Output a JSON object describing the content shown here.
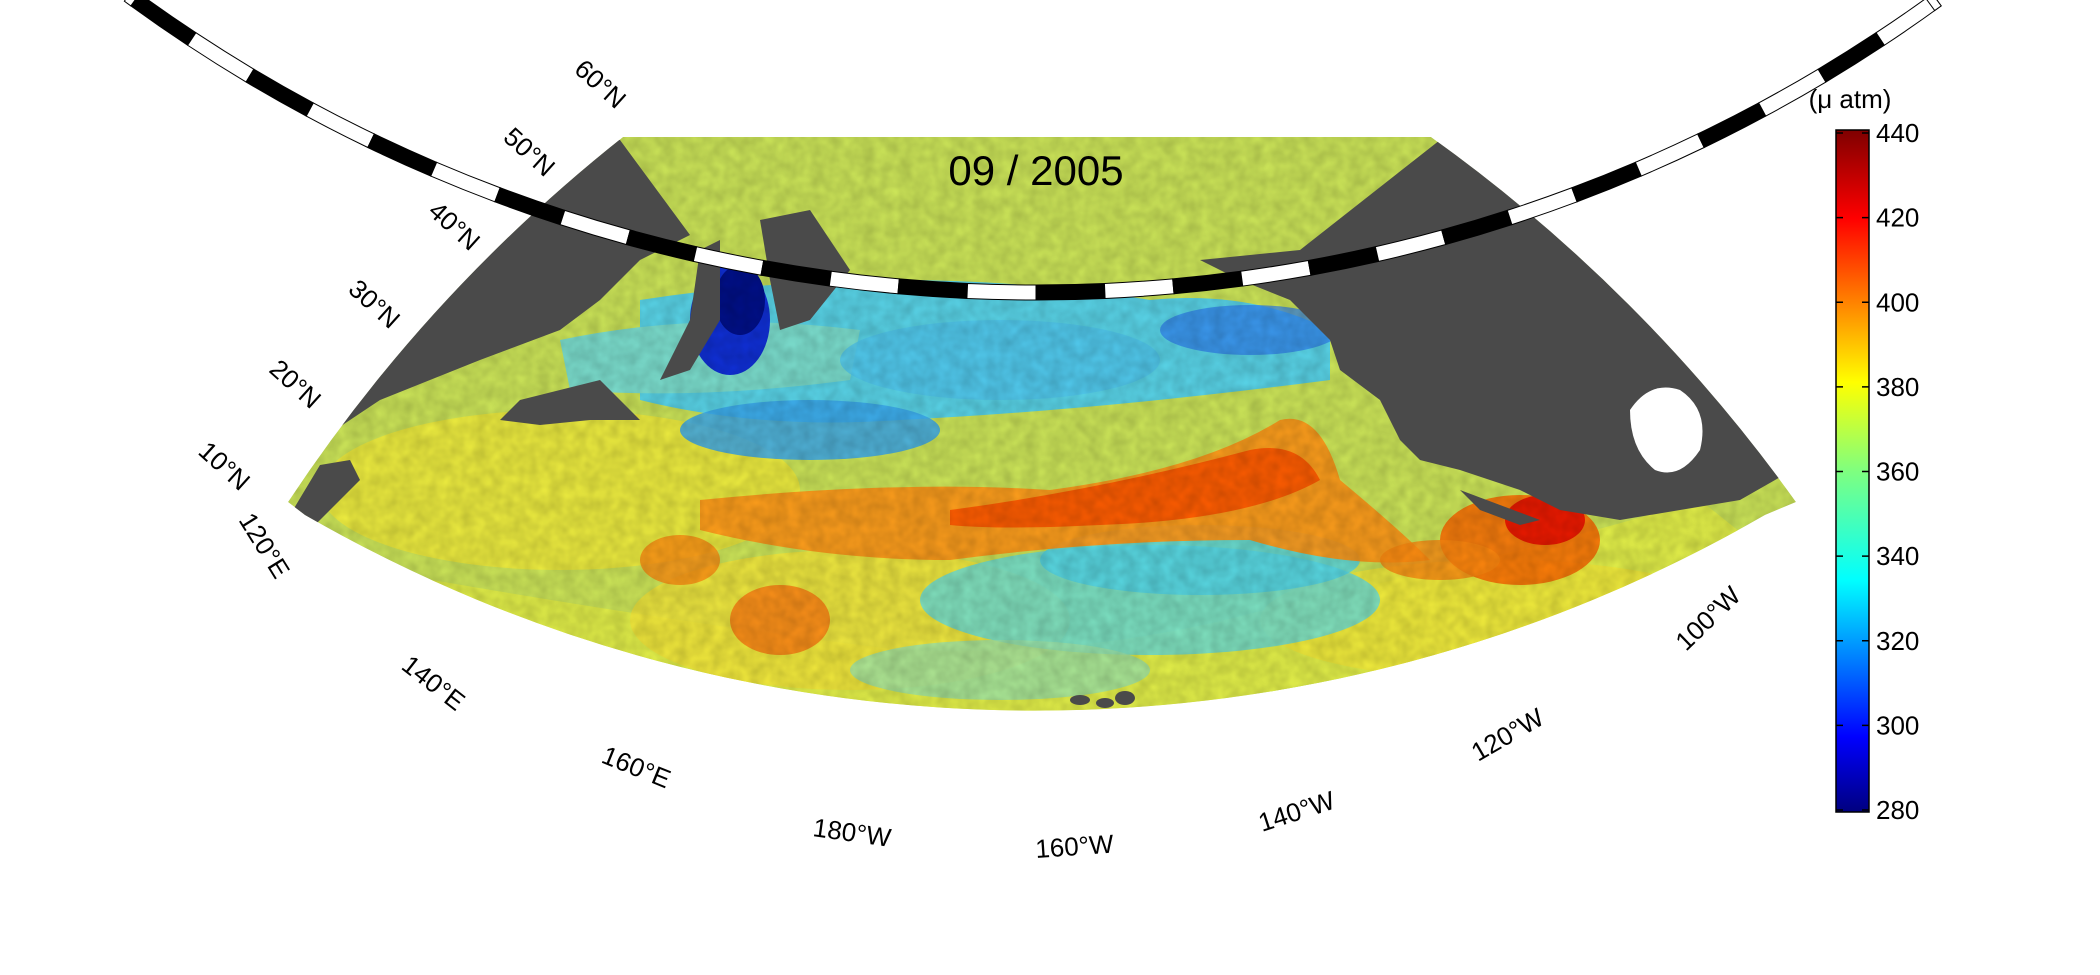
{
  "title": "09 / 2005",
  "colorbar": {
    "unit": "(μ atm)",
    "ticks": [
      "440",
      "420",
      "400",
      "380",
      "360",
      "340",
      "320",
      "300",
      "280"
    ]
  },
  "lat_labels": {
    "l10": "10°N",
    "l20": "20°N",
    "l30": "30°N",
    "l40": "40°N",
    "l50": "50°N",
    "l60": "60°N"
  },
  "lon_labels": {
    "e120": "120°E",
    "e140": "140°E",
    "e160": "160°E",
    "w180": "180°W",
    "w160": "160°W",
    "w140": "140°W",
    "w120": "120°W",
    "w100": "100°W"
  },
  "colors": {
    "land": "#4a4a4a",
    "frame": "#000000",
    "colormap": "jet"
  }
}
